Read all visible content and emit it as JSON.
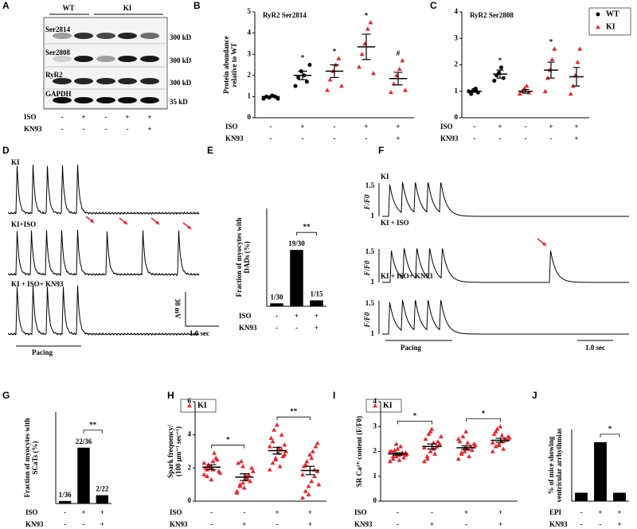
{
  "panel_letters": [
    "A",
    "B",
    "C",
    "D",
    "E",
    "F",
    "G",
    "H",
    "I",
    "J"
  ],
  "blot": {
    "groups": [
      "WT",
      "KI"
    ],
    "rows": [
      "Ser2814",
      "Ser2808",
      "RyR2",
      "GAPDH"
    ],
    "sizes": [
      "300 kD",
      "300 kD",
      "300 kD",
      "35 kD"
    ],
    "conditions": [
      {
        "label": "ISO",
        "values": [
          "-",
          "+",
          "-",
          "+",
          "+"
        ]
      },
      {
        "label": "KN93",
        "values": [
          "-",
          "-",
          "-",
          "-",
          "+"
        ]
      }
    ]
  },
  "traces_d": {
    "rows": [
      "KI",
      "KI+ISO",
      "KI + ISO+ KN93"
    ],
    "pacing": "Pacing",
    "scale_v": "30 mV",
    "scale_t": "1.0 sec"
  },
  "traces_f": {
    "rows": [
      "KI",
      "KI + ISO",
      "KI + ISO+ KN93"
    ],
    "pacing": "Pacing",
    "scale_t": "1.0 sec",
    "y_label": "F/F0",
    "y_ticks": [
      "1.5",
      "1"
    ]
  },
  "chart_data": [
    {
      "type": "dot",
      "title": "RyR2 Ser2814",
      "ylabel": [
        "Protein abundance",
        "relative to WT"
      ],
      "ylim": [
        0,
        5
      ],
      "yticks": [
        0,
        1,
        2,
        3,
        4,
        5
      ],
      "groups": [
        {
          "color": "#000000",
          "marker": "circle",
          "values": [
            0.9,
            1.0,
            0.95,
            1.05,
            1.0,
            0.9
          ],
          "mean": 1.0,
          "sem": 0.03
        },
        {
          "color": "#000000",
          "marker": "circle",
          "values": [
            1.5,
            1.9,
            2.2,
            2.0,
            1.7,
            2.5
          ],
          "mean": 2.0,
          "sem": 0.2
        },
        {
          "color": "#e8262b",
          "marker": "triangle",
          "values": [
            1.3,
            1.8,
            2.2,
            2.5,
            2.8,
            1.5
          ],
          "mean": 2.2,
          "sem": 0.3
        },
        {
          "color": "#e8262b",
          "marker": "triangle",
          "values": [
            2.4,
            3.0,
            3.5,
            4.2,
            4.5,
            2.1
          ],
          "mean": 3.35,
          "sem": 0.6
        },
        {
          "color": "#e8262b",
          "marker": "triangle",
          "values": [
            1.2,
            1.6,
            2.0,
            2.3,
            2.7,
            1.3
          ],
          "mean": 1.85,
          "sem": 0.3
        }
      ],
      "annotations": [
        {
          "text": "*",
          "groups": [
            1
          ]
        },
        {
          "text": "*",
          "groups": [
            2
          ]
        },
        {
          "text": "*",
          "groups": [
            3
          ]
        },
        {
          "text": "#",
          "groups": [
            4
          ]
        }
      ],
      "conditions": [
        {
          "label": "ISO",
          "values": [
            "-",
            "+",
            "-",
            "+",
            "+"
          ]
        },
        {
          "label": "KN93",
          "values": [
            "-",
            "-",
            "-",
            "-",
            "+"
          ]
        }
      ]
    },
    {
      "type": "dot",
      "title": "RyR2 Ser2808",
      "ylabel": [],
      "ylim": [
        0,
        4
      ],
      "yticks": [
        0,
        1,
        2,
        3,
        4
      ],
      "legend": [
        {
          "name": "WT",
          "color": "#000000",
          "marker": "circle"
        },
        {
          "name": "KI",
          "color": "#e8262b",
          "marker": "triangle"
        }
      ],
      "groups": [
        {
          "color": "#000000",
          "marker": "circle",
          "values": [
            1.0,
            0.9,
            1.05,
            1.1,
            0.95
          ],
          "mean": 1.0,
          "sem": 0.04
        },
        {
          "color": "#000000",
          "marker": "circle",
          "values": [
            1.4,
            1.6,
            1.7,
            1.9,
            1.5
          ],
          "mean": 1.65,
          "sem": 0.15
        },
        {
          "color": "#e8262b",
          "marker": "triangle",
          "values": [
            0.9,
            1.0,
            1.1,
            1.2,
            0.95
          ],
          "mean": 1.0,
          "sem": 0.07
        },
        {
          "color": "#e8262b",
          "marker": "triangle",
          "values": [
            1.0,
            1.5,
            1.8,
            2.2,
            2.6
          ],
          "mean": 1.8,
          "sem": 0.3
        },
        {
          "color": "#e8262b",
          "marker": "triangle",
          "values": [
            0.9,
            1.2,
            1.6,
            2.1,
            2.6
          ],
          "mean": 1.55,
          "sem": 0.35
        }
      ],
      "annotations": [
        {
          "text": "*",
          "groups": [
            1
          ]
        },
        {
          "text": "*",
          "groups": [
            3
          ]
        }
      ],
      "conditions": [
        {
          "label": "ISO",
          "values": [
            "-",
            "+",
            "-",
            "+",
            "+"
          ]
        },
        {
          "label": "KN93",
          "values": [
            "-",
            "-",
            "-",
            "-",
            "+"
          ]
        }
      ]
    },
    {
      "type": "bar",
      "ylabel": [
        "Fraction of myocytes with",
        "DADs (%)"
      ],
      "ylim": [
        0,
        110
      ],
      "color": "#000000",
      "values": [
        3.33,
        63.33,
        6.67
      ],
      "value_labels": [
        "1/30",
        "19/30",
        "1/15"
      ],
      "annotations": [
        {
          "text": "**",
          "groups": [
            1,
            2
          ]
        }
      ],
      "conditions": [
        {
          "label": "ISO",
          "values": [
            "-",
            "+",
            "+"
          ]
        },
        {
          "label": "KN93",
          "values": [
            "-",
            "-",
            "+"
          ]
        }
      ]
    },
    {
      "type": "bar",
      "ylabel": [
        "Fraction of myocytes with",
        "SCaTs (%)"
      ],
      "ylim": [
        0,
        100
      ],
      "color": "#000000",
      "values": [
        2.78,
        61.11,
        9.09
      ],
      "value_labels": [
        "1/36",
        "22/36",
        "2/22"
      ],
      "annotations": [
        {
          "text": "**",
          "groups": [
            1,
            2
          ]
        }
      ],
      "conditions": [
        {
          "label": "ISO",
          "values": [
            "-",
            "+",
            "+"
          ]
        },
        {
          "label": "KN93",
          "values": [
            "-",
            "-",
            "+"
          ]
        }
      ]
    },
    {
      "type": "dot",
      "ylabel": [
        "Spark frequency/",
        "(100 μm⁻¹ sec⁻¹)"
      ],
      "ylim": [
        0,
        6
      ],
      "yticks": [
        0,
        2,
        4,
        6
      ],
      "legend": [
        {
          "name": "KI",
          "color": "#e8262b",
          "marker": "triangle"
        }
      ],
      "groups": [
        {
          "color": "#e8262b",
          "marker": "triangle",
          "values": [
            1.6,
            1.9,
            2.1,
            2.4,
            2.6,
            1.8,
            2.0,
            2.2,
            1.3,
            2.9,
            2.5,
            1.7,
            2.3,
            1.5,
            2.0,
            1.9
          ]
        },
        {
          "color": "#e8262b",
          "marker": "triangle",
          "values": [
            0.6,
            0.9,
            1.1,
            1.3,
            1.6,
            2.0,
            2.3,
            2.4,
            0.8,
            1.4,
            1.2,
            1.8,
            0.5,
            1.0,
            2.1,
            1.5
          ]
        },
        {
          "color": "#e8262b",
          "marker": "triangle",
          "values": [
            1.9,
            2.3,
            2.6,
            2.9,
            3.1,
            3.4,
            3.8,
            4.3,
            4.6,
            2.1,
            2.7,
            3.0,
            3.3,
            3.6,
            2.5,
            3.2,
            4.0,
            2.8
          ]
        },
        {
          "color": "#e8262b",
          "marker": "triangle",
          "values": [
            0.2,
            0.6,
            0.9,
            1.2,
            1.5,
            1.8,
            2.1,
            2.4,
            2.8,
            3.0,
            3.3,
            1.0,
            1.6,
            2.2,
            0.4,
            2.6,
            1.9,
            3.5
          ]
        }
      ],
      "means": [
        2.05,
        1.45,
        3.05,
        1.85
      ],
      "sems": [
        0.15,
        0.2,
        0.2,
        0.25
      ],
      "annotations": [
        {
          "text": "*",
          "groups": [
            0,
            1
          ]
        },
        {
          "text": "**",
          "groups": [
            2,
            3
          ]
        }
      ],
      "conditions": [
        {
          "label": "ISO",
          "values": [
            "-",
            "-",
            "+",
            "+"
          ]
        },
        {
          "label": "KN93",
          "values": [
            "-",
            "+",
            "-",
            "+"
          ]
        }
      ]
    },
    {
      "type": "dot",
      "ylabel": [
        "SR Ca²⁺ content (F/F0)"
      ],
      "ylim": [
        0,
        4
      ],
      "yticks": [
        0,
        1,
        2,
        3,
        4
      ],
      "legend": [
        {
          "name": "KI",
          "color": "#e8262b",
          "marker": "triangle"
        }
      ],
      "groups": [
        {
          "color": "#e8262b",
          "marker": "triangle",
          "values": [
            1.6,
            1.7,
            1.8,
            1.85,
            1.9,
            1.95,
            2.0,
            2.05,
            2.1,
            2.2,
            1.75,
            1.9,
            2.0,
            1.8,
            2.3,
            1.65,
            1.95,
            1.85
          ]
        },
        {
          "color": "#e8262b",
          "marker": "triangle",
          "values": [
            1.6,
            1.8,
            2.0,
            2.1,
            2.2,
            2.3,
            2.5,
            2.7,
            2.9,
            1.9,
            2.4,
            2.6,
            2.15,
            1.7,
            2.8,
            2.35
          ]
        },
        {
          "color": "#e8262b",
          "marker": "triangle",
          "values": [
            1.7,
            1.9,
            2.0,
            2.1,
            2.2,
            2.3,
            2.4,
            2.6,
            2.8,
            1.8,
            2.05,
            2.25,
            2.5,
            1.95,
            2.15,
            2.35
          ]
        },
        {
          "color": "#e8262b",
          "marker": "triangle",
          "values": [
            2.0,
            2.2,
            2.3,
            2.4,
            2.5,
            2.6,
            2.7,
            2.9,
            3.0,
            2.1,
            2.45,
            2.55,
            2.35,
            2.8,
            2.25,
            2.65
          ]
        }
      ],
      "means": [
        1.9,
        2.2,
        2.15,
        2.45
      ],
      "sems": [
        0.05,
        0.1,
        0.08,
        0.08
      ],
      "annotations": [
        {
          "text": "*",
          "groups": [
            0,
            1
          ]
        },
        {
          "text": "*",
          "groups": [
            2,
            3
          ]
        }
      ],
      "conditions": [
        {
          "label": "ISO",
          "values": [
            "-",
            "-",
            "+",
            "+"
          ]
        },
        {
          "label": "KN93",
          "values": [
            "-",
            "+",
            "-",
            "+"
          ]
        }
      ]
    },
    {
      "type": "bar",
      "ylabel": [
        "% of mice showing",
        "ventricular arrhythmias"
      ],
      "ylim": [
        0,
        85
      ],
      "color": "#000000",
      "values": [
        10,
        70,
        10
      ],
      "annotations": [
        {
          "text": "*",
          "groups": [
            1,
            2
          ]
        }
      ],
      "conditions": [
        {
          "label": "EPI",
          "values": [
            "-",
            "+",
            "+"
          ]
        },
        {
          "label": "KN93",
          "values": [
            "-",
            "-",
            "+"
          ]
        }
      ]
    }
  ]
}
